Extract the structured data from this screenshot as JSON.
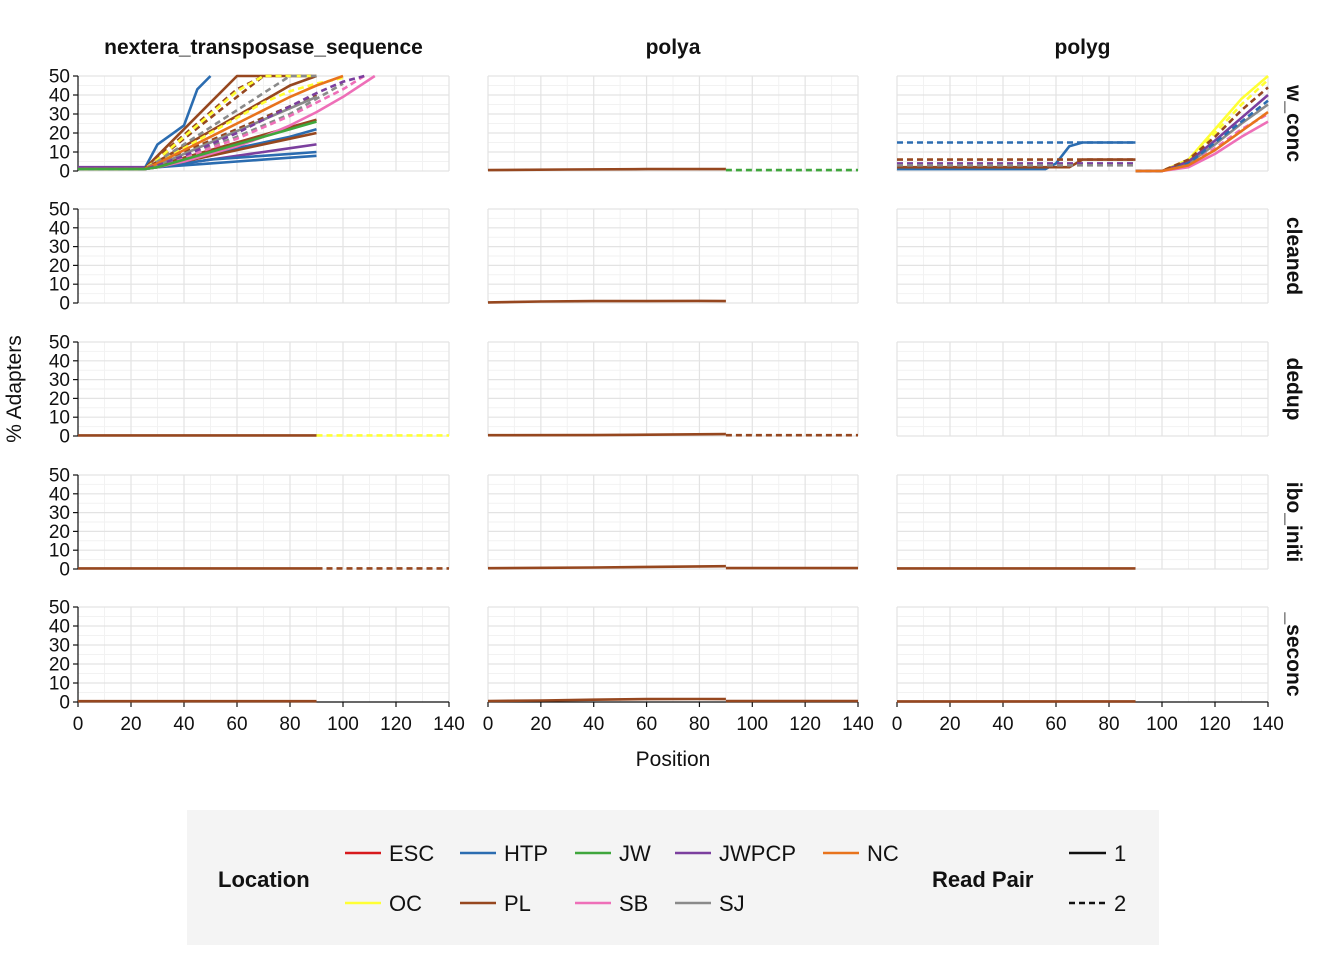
{
  "chart_data": {
    "type": "line",
    "facets": {
      "columns": [
        "nextera_transposase_sequence",
        "polya",
        "polyg"
      ],
      "rows": [
        "raw_concat",
        "cleaned",
        "dedup",
        "ribo_initial",
        "ribo_secondary"
      ],
      "rows_visible": [
        "w_conc",
        "cleaned",
        "dedup",
        "ibo_initi",
        "_seconc"
      ]
    },
    "xlabel": "Position",
    "ylabel": "% Adapters",
    "xlim": [
      0,
      140
    ],
    "ylim": [
      0,
      50
    ],
    "x_ticks": [
      "0",
      "20",
      "40",
      "60",
      "80",
      "100",
      "120",
      "140"
    ],
    "y_ticks": [
      "0",
      "10",
      "20",
      "30",
      "40",
      "50"
    ],
    "grid": true,
    "legend": {
      "position": "bottom",
      "location_title": "Location",
      "location_entries": [
        {
          "name": "ESC",
          "color": "#d7191c"
        },
        {
          "name": "HTP",
          "color": "#2b6cb0"
        },
        {
          "name": "JW",
          "color": "#3fa63c"
        },
        {
          "name": "JWPCP",
          "color": "#7b3f9e"
        },
        {
          "name": "NC",
          "color": "#e8731c"
        },
        {
          "name": "OC",
          "color": "#ffff33"
        },
        {
          "name": "PL",
          "color": "#96471f"
        },
        {
          "name": "SB",
          "color": "#ee6fb8"
        },
        {
          "name": "SJ",
          "color": "#8a8a8a"
        }
      ],
      "readpair_title": "Read Pair",
      "readpair_entries": [
        {
          "name": "1",
          "dash": "solid"
        },
        {
          "name": "2",
          "dash": "dashed"
        }
      ]
    },
    "series": [
      {
        "facet": [
          0,
          0
        ],
        "loc": "JWPCP",
        "pair": 1,
        "x": [
          0,
          20,
          25,
          30,
          40,
          50,
          60,
          70,
          80,
          90
        ],
        "y": [
          2,
          2,
          2,
          3,
          4,
          6,
          8,
          10,
          12,
          14
        ]
      },
      {
        "facet": [
          0,
          0
        ],
        "loc": "HTP",
        "pair": 1,
        "x": [
          0,
          25,
          30,
          35,
          40,
          45,
          50
        ],
        "y": [
          1,
          1,
          14,
          19,
          24,
          43,
          50
        ]
      },
      {
        "facet": [
          0,
          0
        ],
        "loc": "HTP",
        "pair": 1,
        "x": [
          0,
          25,
          30,
          40,
          50,
          60,
          70,
          80,
          90
        ],
        "y": [
          1,
          1,
          2,
          3,
          4,
          5,
          6,
          7,
          8
        ]
      },
      {
        "facet": [
          0,
          0
        ],
        "loc": "HTP",
        "pair": 1,
        "x": [
          0,
          25,
          30,
          40,
          50,
          60,
          70,
          80,
          90
        ],
        "y": [
          1,
          1,
          3,
          6,
          9,
          12,
          15,
          18,
          22
        ]
      },
      {
        "facet": [
          0,
          0
        ],
        "loc": "HTP",
        "pair": 2,
        "x": [
          0,
          25,
          30,
          40,
          50,
          60,
          70,
          80,
          90
        ],
        "y": [
          1,
          1,
          4,
          10,
          16,
          22,
          28,
          34,
          40
        ]
      },
      {
        "facet": [
          0,
          0
        ],
        "loc": "HTP",
        "pair": 1,
        "x": [
          0,
          25,
          30,
          40,
          50,
          60,
          70,
          80,
          90
        ],
        "y": [
          1,
          1,
          2,
          4,
          6,
          7,
          8,
          9,
          10
        ]
      },
      {
        "facet": [
          0,
          0
        ],
        "loc": "PL",
        "pair": 1,
        "x": [
          0,
          25,
          30,
          40,
          50,
          60,
          70,
          80,
          90
        ],
        "y": [
          1,
          1,
          8,
          22,
          36,
          50,
          50,
          50,
          50
        ]
      },
      {
        "facet": [
          0,
          0
        ],
        "loc": "PL",
        "pair": 2,
        "x": [
          0,
          25,
          30,
          40,
          50,
          60,
          70,
          80,
          90
        ],
        "y": [
          1,
          1,
          6,
          17,
          28,
          39,
          50,
          50,
          50
        ]
      },
      {
        "facet": [
          0,
          0
        ],
        "loc": "PL",
        "pair": 1,
        "x": [
          0,
          25,
          30,
          40,
          50,
          60,
          70,
          80,
          90
        ],
        "y": [
          1,
          1,
          5,
          13,
          21,
          29,
          37,
          45,
          50
        ]
      },
      {
        "facet": [
          0,
          0
        ],
        "loc": "PL",
        "pair": 2,
        "x": [
          0,
          25,
          30,
          40,
          50,
          60,
          70,
          80,
          90
        ],
        "y": [
          1,
          1,
          4,
          10,
          16,
          22,
          28,
          34,
          40
        ]
      },
      {
        "facet": [
          0,
          0
        ],
        "loc": "PL",
        "pair": 1,
        "x": [
          0,
          25,
          30,
          40,
          50,
          60,
          70,
          80,
          90
        ],
        "y": [
          1,
          1,
          3,
          7,
          11,
          15,
          19,
          23,
          27
        ]
      },
      {
        "facet": [
          0,
          0
        ],
        "loc": "PL",
        "pair": 2,
        "x": [
          0,
          25,
          30,
          40,
          50,
          60,
          70,
          80,
          90
        ],
        "y": [
          1,
          1,
          7,
          19,
          31,
          43,
          50,
          50,
          50
        ]
      },
      {
        "facet": [
          0,
          0
        ],
        "loc": "PL",
        "pair": 1,
        "x": [
          0,
          25,
          30,
          40,
          50,
          60,
          70,
          80,
          90
        ],
        "y": [
          1,
          1,
          2,
          5,
          8,
          11,
          14,
          17,
          20
        ]
      },
      {
        "facet": [
          0,
          0
        ],
        "loc": "OC",
        "pair": 2,
        "x": [
          0,
          25,
          30,
          40,
          50,
          60,
          70,
          80,
          90,
          100
        ],
        "y": [
          1,
          1,
          4,
          12,
          20,
          28,
          36,
          42,
          46,
          49
        ]
      },
      {
        "facet": [
          0,
          0
        ],
        "loc": "OC",
        "pair": 2,
        "x": [
          0,
          25,
          30,
          40,
          50,
          60,
          70,
          80,
          90
        ],
        "y": [
          1,
          1,
          6,
          18,
          30,
          42,
          50,
          50,
          50
        ]
      },
      {
        "facet": [
          0,
          0
        ],
        "loc": "SJ",
        "pair": 2,
        "x": [
          0,
          25,
          30,
          40,
          50,
          60,
          70,
          80,
          90
        ],
        "y": [
          1,
          1,
          5,
          14,
          23,
          32,
          41,
          50,
          50
        ]
      },
      {
        "facet": [
          0,
          0
        ],
        "loc": "SJ",
        "pair": 1,
        "x": [
          0,
          25,
          30,
          40,
          50,
          60,
          70,
          80,
          90
        ],
        "y": [
          1,
          1,
          3,
          9,
          15,
          21,
          27,
          33,
          39
        ]
      },
      {
        "facet": [
          0,
          0
        ],
        "loc": "SJ",
        "pair": 2,
        "x": [
          0,
          25,
          30,
          40,
          50,
          60,
          70,
          80,
          90,
          100
        ],
        "y": [
          1,
          1,
          3,
          8,
          13,
          18,
          24,
          30,
          38,
          46
        ]
      },
      {
        "facet": [
          0,
          0
        ],
        "loc": "SB",
        "pair": 1,
        "x": [
          0,
          25,
          30,
          40,
          50,
          60,
          70,
          80,
          90,
          100,
          112
        ],
        "y": [
          1,
          1,
          2,
          5,
          9,
          13,
          18,
          24,
          31,
          39,
          50
        ]
      },
      {
        "facet": [
          0,
          0
        ],
        "loc": "SB",
        "pair": 2,
        "x": [
          0,
          25,
          30,
          40,
          50,
          60,
          70,
          80,
          90,
          100,
          108
        ],
        "y": [
          1,
          1,
          3,
          7,
          12,
          17,
          23,
          29,
          36,
          43,
          50
        ]
      },
      {
        "facet": [
          0,
          0
        ],
        "loc": "NC",
        "pair": 1,
        "x": [
          0,
          25,
          30,
          40,
          50,
          60,
          70,
          80,
          90,
          100
        ],
        "y": [
          1,
          1,
          4,
          11,
          18,
          25,
          32,
          39,
          45,
          50
        ]
      },
      {
        "facet": [
          0,
          0
        ],
        "loc": "JWPCP",
        "pair": 2,
        "x": [
          0,
          25,
          30,
          40,
          50,
          60,
          70,
          80,
          90,
          100,
          108
        ],
        "y": [
          1,
          1,
          3,
          8,
          14,
          20,
          27,
          34,
          41,
          47,
          50
        ]
      },
      {
        "facet": [
          0,
          0
        ],
        "loc": "JW",
        "pair": 1,
        "x": [
          0,
          25,
          30,
          40,
          50,
          60,
          70,
          80,
          90
        ],
        "y": [
          1,
          1,
          2,
          6,
          10,
          14,
          18,
          22,
          26
        ]
      },
      {
        "facet": [
          0,
          1
        ],
        "loc": "PL",
        "pair": 1,
        "x": [
          0,
          30,
          60,
          90
        ],
        "y": [
          0.5,
          0.8,
          1.0,
          1.0
        ]
      },
      {
        "facet": [
          0,
          1
        ],
        "loc": "JW",
        "pair": 2,
        "x": [
          90,
          140
        ],
        "y": [
          0.5,
          0.5
        ]
      },
      {
        "facet": [
          0,
          2
        ],
        "loc": "HTP",
        "pair": 2,
        "x": [
          0,
          90
        ],
        "y": [
          15,
          15
        ]
      },
      {
        "facet": [
          0,
          2
        ],
        "loc": "HTP",
        "pair": 1,
        "x": [
          0,
          56,
          60,
          65,
          70,
          90
        ],
        "y": [
          1,
          1,
          4,
          13,
          15,
          15
        ]
      },
      {
        "facet": [
          0,
          2
        ],
        "loc": "PL",
        "pair": 2,
        "x": [
          0,
          90
        ],
        "y": [
          6,
          6
        ]
      },
      {
        "facet": [
          0,
          2
        ],
        "loc": "PL",
        "pair": 1,
        "x": [
          0,
          65,
          70,
          90
        ],
        "y": [
          2,
          2,
          6,
          6
        ]
      },
      {
        "facet": [
          0,
          2
        ],
        "loc": "JWPCP",
        "pair": 2,
        "x": [
          0,
          90
        ],
        "y": [
          4,
          4
        ]
      },
      {
        "facet": [
          0,
          2
        ],
        "loc": "SJ",
        "pair": 2,
        "x": [
          0,
          90
        ],
        "y": [
          3,
          3
        ]
      },
      {
        "facet": [
          0,
          2
        ],
        "loc": "OC",
        "pair": 2,
        "x": [
          90,
          100,
          110,
          120,
          130,
          140
        ],
        "y": [
          0,
          0,
          5,
          20,
          35,
          48
        ]
      },
      {
        "facet": [
          0,
          2
        ],
        "loc": "OC",
        "pair": 1,
        "x": [
          90,
          100,
          110,
          120,
          130,
          140
        ],
        "y": [
          0,
          0,
          6,
          22,
          38,
          50
        ]
      },
      {
        "facet": [
          0,
          2
        ],
        "loc": "SB",
        "pair": 2,
        "x": [
          90,
          100,
          110,
          120,
          130,
          140
        ],
        "y": [
          0,
          0,
          3,
          12,
          22,
          30
        ]
      },
      {
        "facet": [
          0,
          2
        ],
        "loc": "SB",
        "pair": 1,
        "x": [
          90,
          100,
          110,
          120,
          130,
          140
        ],
        "y": [
          0,
          0,
          2,
          9,
          18,
          26
        ]
      },
      {
        "facet": [
          0,
          2
        ],
        "loc": "SJ",
        "pair": 1,
        "x": [
          90,
          100,
          110,
          120,
          130,
          140
        ],
        "y": [
          0,
          0,
          4,
          14,
          25,
          35
        ]
      },
      {
        "facet": [
          0,
          2
        ],
        "loc": "JWPCP",
        "pair": 1,
        "x": [
          90,
          100,
          110,
          120,
          130,
          140
        ],
        "y": [
          0,
          0,
          5,
          16,
          28,
          40
        ]
      },
      {
        "facet": [
          0,
          2
        ],
        "loc": "HTP",
        "pair": 2,
        "x": [
          90,
          100,
          110,
          120,
          130,
          140
        ],
        "y": [
          0,
          0,
          4,
          15,
          26,
          37
        ]
      },
      {
        "facet": [
          0,
          2
        ],
        "loc": "PL",
        "pair": 2,
        "x": [
          90,
          100,
          110,
          120,
          130,
          140
        ],
        "y": [
          0,
          0,
          6,
          18,
          32,
          44
        ]
      },
      {
        "facet": [
          0,
          2
        ],
        "loc": "NC",
        "pair": 1,
        "x": [
          90,
          100,
          110,
          120,
          130,
          140
        ],
        "y": [
          0,
          0,
          3,
          11,
          21,
          31
        ]
      },
      {
        "facet": [
          1,
          1
        ],
        "loc": "PL",
        "pair": 1,
        "x": [
          0,
          20,
          40,
          60,
          80,
          90
        ],
        "y": [
          0.3,
          0.8,
          1.0,
          1.0,
          1.1,
          1.0
        ]
      },
      {
        "facet": [
          2,
          0
        ],
        "loc": "PL",
        "pair": 1,
        "x": [
          0,
          90
        ],
        "y": [
          0.3,
          0.3
        ]
      },
      {
        "facet": [
          2,
          0
        ],
        "loc": "OC",
        "pair": 2,
        "x": [
          90,
          140
        ],
        "y": [
          0.3,
          0.3
        ]
      },
      {
        "facet": [
          2,
          1
        ],
        "loc": "PL",
        "pair": 1,
        "x": [
          0,
          40,
          90
        ],
        "y": [
          0.4,
          0.5,
          1.0
        ]
      },
      {
        "facet": [
          2,
          1
        ],
        "loc": "PL",
        "pair": 2,
        "x": [
          90,
          140
        ],
        "y": [
          0.4,
          0.4
        ]
      },
      {
        "facet": [
          3,
          0
        ],
        "loc": "PL",
        "pair": 1,
        "x": [
          0,
          90
        ],
        "y": [
          0.3,
          0.3
        ]
      },
      {
        "facet": [
          3,
          0
        ],
        "loc": "PL",
        "pair": 2,
        "x": [
          90,
          140
        ],
        "y": [
          0.3,
          0.3
        ]
      },
      {
        "facet": [
          3,
          1
        ],
        "loc": "PL",
        "pair": 1,
        "x": [
          0,
          40,
          90
        ],
        "y": [
          0.4,
          0.8,
          1.5
        ]
      },
      {
        "facet": [
          3,
          1
        ],
        "loc": "PL",
        "pair": 1,
        "x": [
          90,
          140
        ],
        "y": [
          0.5,
          0.5
        ]
      },
      {
        "facet": [
          3,
          2
        ],
        "loc": "PL",
        "pair": 1,
        "x": [
          0,
          90
        ],
        "y": [
          0.3,
          0.3
        ]
      },
      {
        "facet": [
          4,
          0
        ],
        "loc": "PL",
        "pair": 1,
        "x": [
          0,
          90
        ],
        "y": [
          0.4,
          0.4
        ]
      },
      {
        "facet": [
          4,
          1
        ],
        "loc": "PL",
        "pair": 1,
        "x": [
          0,
          20,
          40,
          60,
          80,
          90
        ],
        "y": [
          0.5,
          0.8,
          1.2,
          1.5,
          1.6,
          1.5
        ]
      },
      {
        "facet": [
          4,
          1
        ],
        "loc": "PL",
        "pair": 1,
        "x": [
          90,
          140
        ],
        "y": [
          0.5,
          0.5
        ]
      },
      {
        "facet": [
          4,
          2
        ],
        "loc": "PL",
        "pair": 1,
        "x": [
          0,
          90
        ],
        "y": [
          0.3,
          0.3
        ]
      }
    ]
  }
}
